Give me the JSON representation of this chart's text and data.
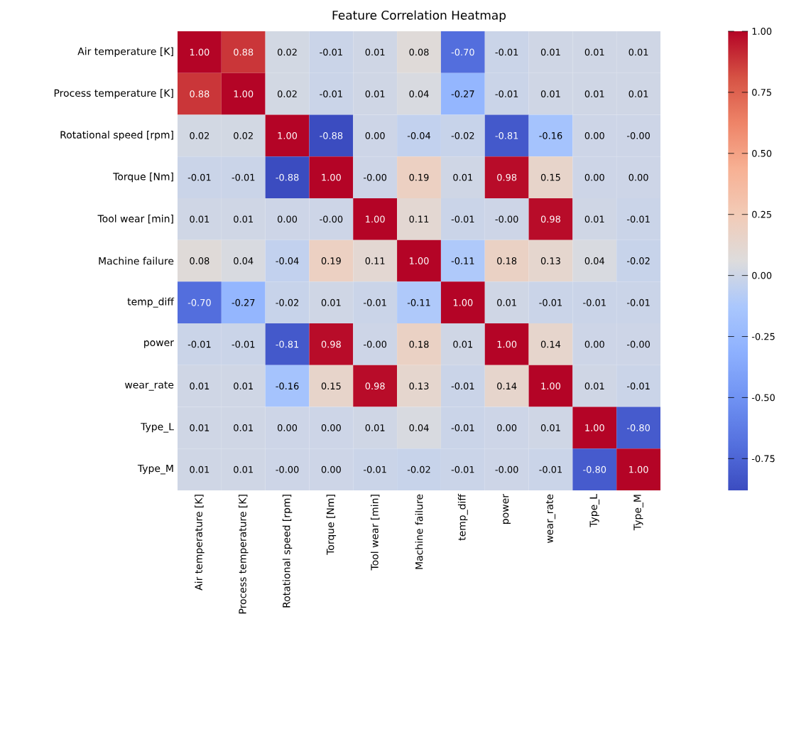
{
  "chart_data": {
    "type": "heatmap",
    "title": "Feature Correlation Heatmap",
    "categories": [
      "Air temperature [K]",
      "Process temperature [K]",
      "Rotational speed [rpm]",
      "Torque [Nm]",
      "Tool wear [min]",
      "Machine failure",
      "temp_diff",
      "power",
      "wear_rate",
      "Type_L",
      "Type_M"
    ],
    "y_categories": [
      "Air temperature [K]",
      "Process temperature [K]",
      "Rotational speed [rpm]",
      "Torque [Nm]",
      "Tool wear [min]",
      "Machine failure",
      "temp_diff",
      "power",
      "wear_rate",
      "Type_L",
      "Type_M"
    ],
    "cells": [
      [
        1.0,
        0.88,
        0.02,
        -0.01,
        0.01,
        0.08,
        -0.7,
        -0.01,
        0.01,
        0.01,
        0.01
      ],
      [
        0.88,
        1.0,
        0.02,
        -0.01,
        0.01,
        0.04,
        -0.27,
        -0.01,
        0.01,
        0.01,
        0.01
      ],
      [
        0.02,
        0.02,
        1.0,
        -0.88,
        0.0,
        -0.04,
        -0.02,
        -0.81,
        -0.16,
        0.0,
        0.0
      ],
      [
        -0.01,
        -0.01,
        -0.88,
        1.0,
        0.0,
        0.19,
        0.01,
        0.98,
        0.15,
        0.0,
        0.0
      ],
      [
        0.01,
        0.01,
        0.0,
        0.0,
        1.0,
        0.11,
        -0.01,
        0.0,
        0.98,
        0.01,
        -0.01
      ],
      [
        0.08,
        0.04,
        -0.04,
        0.19,
        0.11,
        1.0,
        -0.11,
        0.18,
        0.13,
        0.04,
        -0.02
      ],
      [
        -0.7,
        -0.27,
        -0.02,
        0.01,
        -0.01,
        -0.11,
        1.0,
        0.01,
        -0.01,
        -0.01,
        -0.01
      ],
      [
        -0.01,
        -0.01,
        -0.81,
        0.98,
        0.0,
        0.18,
        0.01,
        1.0,
        0.14,
        0.0,
        0.0
      ],
      [
        0.01,
        0.01,
        -0.16,
        0.15,
        0.98,
        0.13,
        -0.01,
        0.14,
        1.0,
        0.01,
        -0.01
      ],
      [
        0.01,
        0.01,
        0.0,
        0.0,
        0.01,
        0.04,
        -0.01,
        0.0,
        0.01,
        1.0,
        -0.8
      ],
      [
        0.01,
        0.01,
        0.0,
        0.0,
        -0.01,
        -0.02,
        -0.01,
        0.0,
        -0.01,
        -0.8,
        1.0
      ]
    ],
    "cell_labels": [
      [
        "1.00",
        "0.88",
        "0.02",
        "-0.01",
        "0.01",
        "0.08",
        "-0.70",
        "-0.01",
        "0.01",
        "0.01",
        "0.01"
      ],
      [
        "0.88",
        "1.00",
        "0.02",
        "-0.01",
        "0.01",
        "0.04",
        "-0.27",
        "-0.01",
        "0.01",
        "0.01",
        "0.01"
      ],
      [
        "0.02",
        "0.02",
        "1.00",
        "-0.88",
        "0.00",
        "-0.04",
        "-0.02",
        "-0.81",
        "-0.16",
        "0.00",
        "-0.00"
      ],
      [
        "-0.01",
        "-0.01",
        "-0.88",
        "1.00",
        "-0.00",
        "0.19",
        "0.01",
        "0.98",
        "0.15",
        "0.00",
        "0.00"
      ],
      [
        "0.01",
        "0.01",
        "0.00",
        "-0.00",
        "1.00",
        "0.11",
        "-0.01",
        "-0.00",
        "0.98",
        "0.01",
        "-0.01"
      ],
      [
        "0.08",
        "0.04",
        "-0.04",
        "0.19",
        "0.11",
        "1.00",
        "-0.11",
        "0.18",
        "0.13",
        "0.04",
        "-0.02"
      ],
      [
        "-0.70",
        "-0.27",
        "-0.02",
        "0.01",
        "-0.01",
        "-0.11",
        "1.00",
        "0.01",
        "-0.01",
        "-0.01",
        "-0.01"
      ],
      [
        "-0.01",
        "-0.01",
        "-0.81",
        "0.98",
        "-0.00",
        "0.18",
        "0.01",
        "1.00",
        "0.14",
        "0.00",
        "-0.00"
      ],
      [
        "0.01",
        "0.01",
        "-0.16",
        "0.15",
        "0.98",
        "0.13",
        "-0.01",
        "0.14",
        "1.00",
        "0.01",
        "-0.01"
      ],
      [
        "0.01",
        "0.01",
        "0.00",
        "0.00",
        "0.01",
        "0.04",
        "-0.01",
        "0.00",
        "0.01",
        "1.00",
        "-0.80"
      ],
      [
        "0.01",
        "0.01",
        "-0.00",
        "0.00",
        "-0.01",
        "-0.02",
        "-0.01",
        "-0.00",
        "-0.01",
        "-0.80",
        "1.00"
      ]
    ],
    "clim": [
      -0.88,
      1.0
    ],
    "cticks": [
      {
        "value": -0.75,
        "label": "-0.75"
      },
      {
        "value": -0.5,
        "label": "-0.50"
      },
      {
        "value": -0.25,
        "label": "-0.25"
      },
      {
        "value": 0,
        "label": "0.00"
      },
      {
        "value": 0.25,
        "label": "0.25"
      },
      {
        "value": 0.5,
        "label": "0.50"
      },
      {
        "value": 0.75,
        "label": "0.75"
      },
      {
        "value": 1,
        "label": "1.00"
      }
    ]
  }
}
